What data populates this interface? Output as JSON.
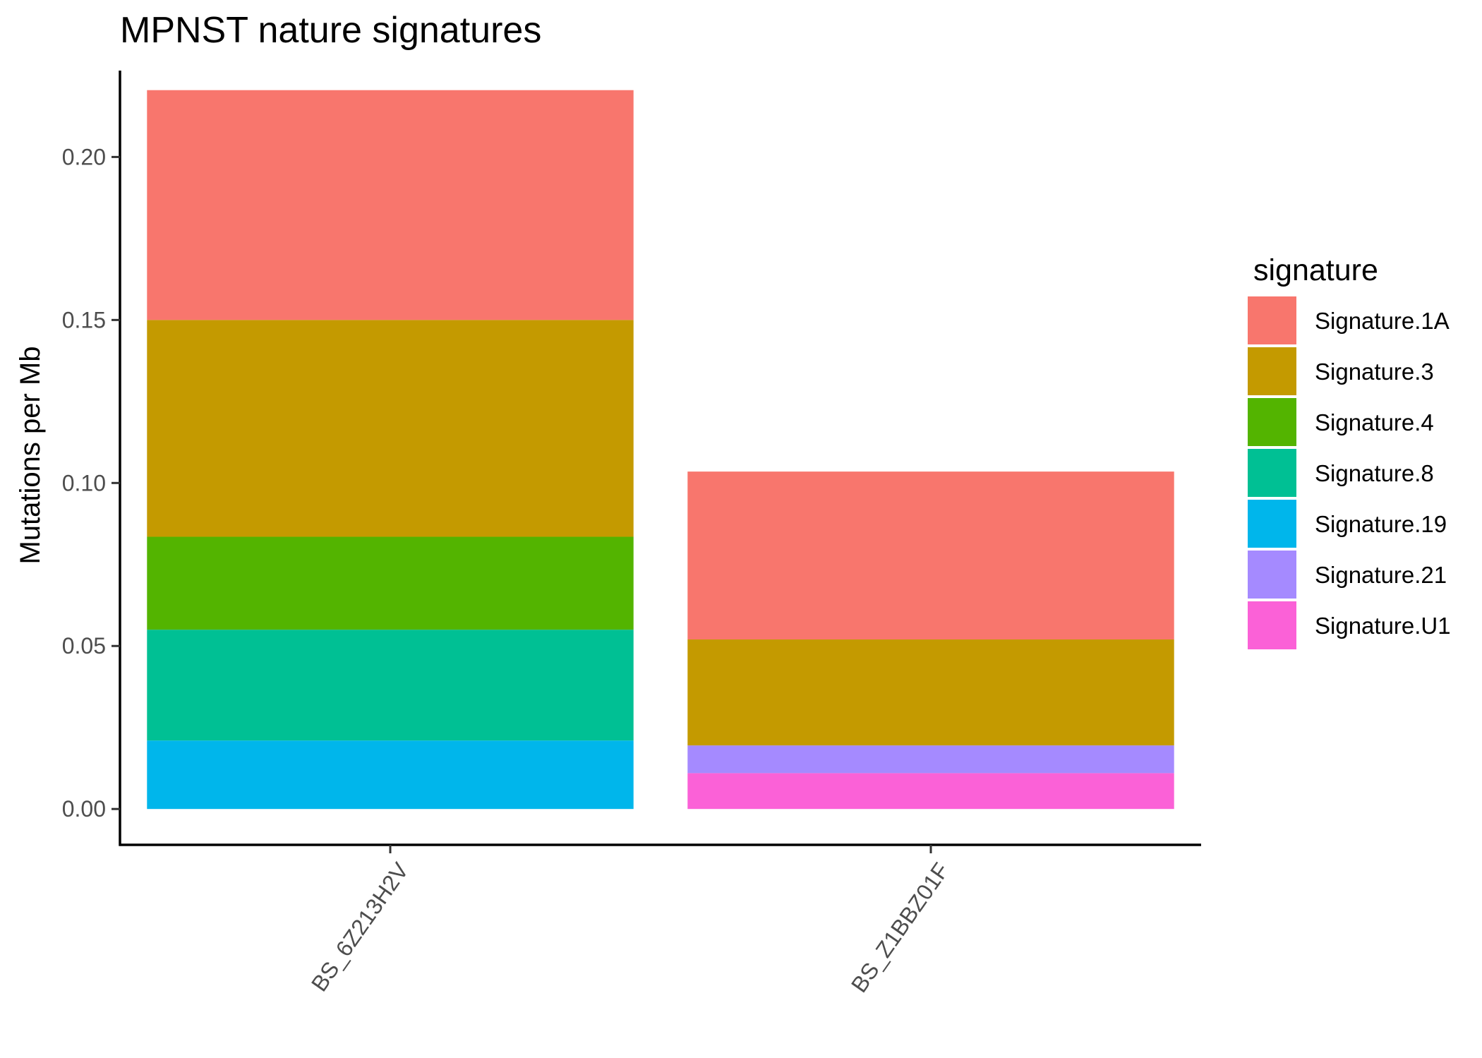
{
  "chart_data": {
    "type": "bar",
    "stacked": true,
    "title": "MPNST nature signatures",
    "xlabel": "",
    "ylabel": "Mutations per Mb",
    "ylim": [
      -0.011,
      0.2265
    ],
    "yticks": [
      0.0,
      0.05,
      0.1,
      0.15,
      0.2
    ],
    "ytick_labels": [
      "0.00",
      "0.05",
      "0.10",
      "0.15",
      "0.20"
    ],
    "categories": [
      "BS_6Z213H2V",
      "BS_Z1BBZ01F"
    ],
    "x_tick_rotation_deg": 55,
    "grid": false,
    "legend": {
      "title": "signature",
      "placement": "right"
    },
    "series": [
      {
        "name": "Signature.1A",
        "color": "#F8766D",
        "values": [
          0.0705,
          0.0515
        ]
      },
      {
        "name": "Signature.3",
        "color": "#C49A00",
        "values": [
          0.0665,
          0.0325
        ]
      },
      {
        "name": "Signature.4",
        "color": "#53B400",
        "values": [
          0.0285,
          0.0
        ]
      },
      {
        "name": "Signature.8",
        "color": "#00C094",
        "values": [
          0.034,
          0.0
        ]
      },
      {
        "name": "Signature.19",
        "color": "#00B6EB",
        "values": [
          0.021,
          0.0
        ]
      },
      {
        "name": "Signature.21",
        "color": "#A58AFF",
        "values": [
          0.0,
          0.0085
        ]
      },
      {
        "name": "Signature.U1",
        "color": "#FB61D7",
        "values": [
          0.0,
          0.011
        ]
      }
    ]
  }
}
